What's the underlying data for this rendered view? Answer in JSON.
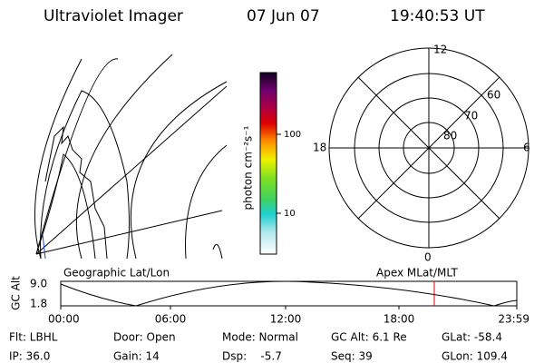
{
  "header": {
    "title": "Ultraviolet Imager",
    "date": "07 Jun 07",
    "time": "19:40:53 UT"
  },
  "colorbar": {
    "label": "photon cm⁻²s⁻¹",
    "ticks": [
      "100",
      "10"
    ]
  },
  "polar": {
    "labels": [
      "12",
      "18",
      "6",
      "0",
      "60",
      "70",
      "80"
    ]
  },
  "altitude": {
    "ylabel": "GC Alt",
    "yticks": [
      "9.0",
      "1.8"
    ],
    "xticks": [
      "00:00",
      "06:00",
      "12:00",
      "18:00",
      "23:59"
    ],
    "left_label": "Geographic Lat/Lon",
    "right_label": "Apex MLat/MLT"
  },
  "info": [
    [
      "Flt: LBHL",
      "Door: Open",
      "Mode: Normal",
      "GC Alt: 6.1 Re",
      "GLat: -58.4"
    ],
    [
      "IP: 36.0",
      "Gain: 14",
      "Dsp:    -5.7",
      "Seq: 39",
      "GLon: 109.4"
    ]
  ]
}
